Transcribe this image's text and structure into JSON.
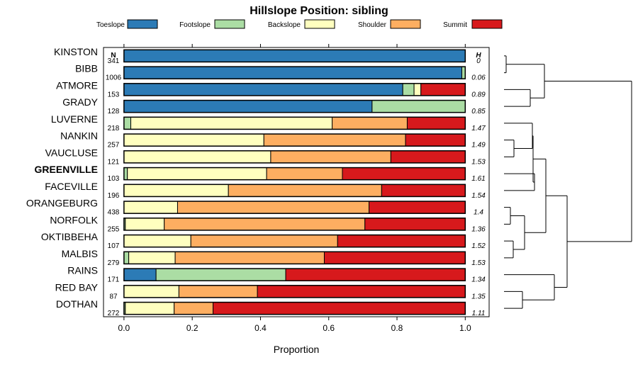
{
  "chart_data": {
    "type": "bar",
    "title": "Hillslope Position: sibling",
    "xlabel": "Proportion",
    "ylabel": "",
    "xlim": [
      -0.06,
      1.07
    ],
    "xticks": [
      0.0,
      0.2,
      0.4,
      0.6,
      0.8,
      1.0
    ],
    "xtick_labels": [
      "0.0",
      "0.2",
      "0.4",
      "0.6",
      "0.8",
      "1.0"
    ],
    "n_header": "N",
    "h_header": "H",
    "legend_position": "top",
    "grid": false,
    "highlight": "GREENVILLE",
    "series": [
      {
        "name": "Toeslope",
        "color": "#2C7BB6"
      },
      {
        "name": "Footslope",
        "color": "#ABDDA4"
      },
      {
        "name": "Backslope",
        "color": "#FFFFBF"
      },
      {
        "name": "Shoulder",
        "color": "#FDAE61"
      },
      {
        "name": "Summit",
        "color": "#D7191C"
      }
    ],
    "categories": [
      {
        "label": "KINSTON",
        "n": "341",
        "h": "0",
        "values": [
          1.0,
          0,
          0,
          0,
          0
        ]
      },
      {
        "label": "BIBB",
        "n": "1006",
        "h": "0.06",
        "values": [
          0.99,
          0.01,
          0,
          0,
          0
        ]
      },
      {
        "label": "ATMORE",
        "n": "153",
        "h": "0.89",
        "values": [
          0.817,
          0.033,
          0.02,
          0,
          0.13
        ]
      },
      {
        "label": "GRADY",
        "n": "128",
        "h": "0.85",
        "values": [
          0.727,
          0.273,
          0,
          0,
          0
        ]
      },
      {
        "label": "LUVERNE",
        "n": "218",
        "h": "1.47",
        "values": [
          0,
          0.02,
          0.59,
          0.22,
          0.17
        ]
      },
      {
        "label": "NANKIN",
        "n": "257",
        "h": "1.49",
        "values": [
          0,
          0,
          0.41,
          0.415,
          0.175
        ]
      },
      {
        "label": "VAUCLUSE",
        "n": "121",
        "h": "1.53",
        "values": [
          0,
          0,
          0.43,
          0.352,
          0.218
        ]
      },
      {
        "label": "GREENVILLE",
        "n": "103",
        "h": "1.61",
        "values": [
          0,
          0.01,
          0.408,
          0.222,
          0.36
        ]
      },
      {
        "label": "FACEVILLE",
        "n": "196",
        "h": "1.54",
        "values": [
          0,
          0,
          0.306,
          0.449,
          0.245
        ]
      },
      {
        "label": "ORANGEBURG",
        "n": "438",
        "h": "1.4",
        "values": [
          0,
          0,
          0.157,
          0.561,
          0.282
        ]
      },
      {
        "label": "NORFOLK",
        "n": "255",
        "h": "1.36",
        "values": [
          0,
          0.004,
          0.114,
          0.588,
          0.294
        ]
      },
      {
        "label": "OKTIBBEHA",
        "n": "107",
        "h": "1.52",
        "values": [
          0,
          0,
          0.196,
          0.43,
          0.374
        ]
      },
      {
        "label": "MALBIS",
        "n": "279",
        "h": "1.53",
        "values": [
          0,
          0.014,
          0.136,
          0.437,
          0.413
        ]
      },
      {
        "label": "RAINS",
        "n": "171",
        "h": "1.34",
        "values": [
          0.094,
          0.38,
          0,
          0,
          0.526
        ]
      },
      {
        "label": "RED BAY",
        "n": "87",
        "h": "1.35",
        "values": [
          0,
          0,
          0.161,
          0.23,
          0.609
        ]
      },
      {
        "label": "DOTHAN",
        "n": "272",
        "h": "1.11",
        "values": [
          0,
          0.004,
          0.143,
          0.114,
          0.739
        ]
      }
    ]
  }
}
